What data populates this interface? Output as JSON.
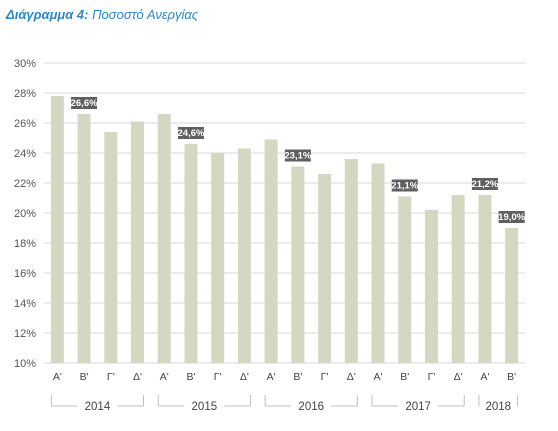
{
  "title_prefix": "Διάγραμμα 4:",
  "title_text": "Ποσοστό Ανεργίας",
  "chart_data": {
    "type": "bar",
    "title": "Διάγραμμα 4: Ποσοστό Ανεργίας",
    "categories": [
      "Α'",
      "Β'",
      "Γ'",
      "Δ'",
      "Α'",
      "Β'",
      "Γ'",
      "Δ'",
      "Α'",
      "Β'",
      "Γ'",
      "Δ'",
      "Α'",
      "Β'",
      "Γ'",
      "Δ'",
      "Α'",
      "Β'"
    ],
    "groups": [
      {
        "label": "2014",
        "start": 0,
        "end": 3
      },
      {
        "label": "2015",
        "start": 4,
        "end": 7
      },
      {
        "label": "2016",
        "start": 8,
        "end": 11
      },
      {
        "label": "2017",
        "start": 12,
        "end": 15
      },
      {
        "label": "2018",
        "start": 16,
        "end": 17
      }
    ],
    "values": [
      27.8,
      26.6,
      25.4,
      26.1,
      26.6,
      24.6,
      24.0,
      24.3,
      24.9,
      23.1,
      22.6,
      23.6,
      23.3,
      21.1,
      20.2,
      21.2,
      21.2,
      19.0
    ],
    "data_labels": {
      "1": "26,6%",
      "5": "24,6%",
      "9": "23,1%",
      "13": "21,1%",
      "16": "21,2%",
      "17": "19,0%"
    },
    "ylim": [
      10,
      30
    ],
    "yticks": [
      "10%",
      "12%",
      "14%",
      "16%",
      "18%",
      "20%",
      "22%",
      "24%",
      "26%",
      "28%",
      "30%"
    ],
    "grid": true,
    "bar_color": "#d6d7c2",
    "label_bg_color": "#5f5f5f",
    "grid_color": "#d9d9d9"
  }
}
